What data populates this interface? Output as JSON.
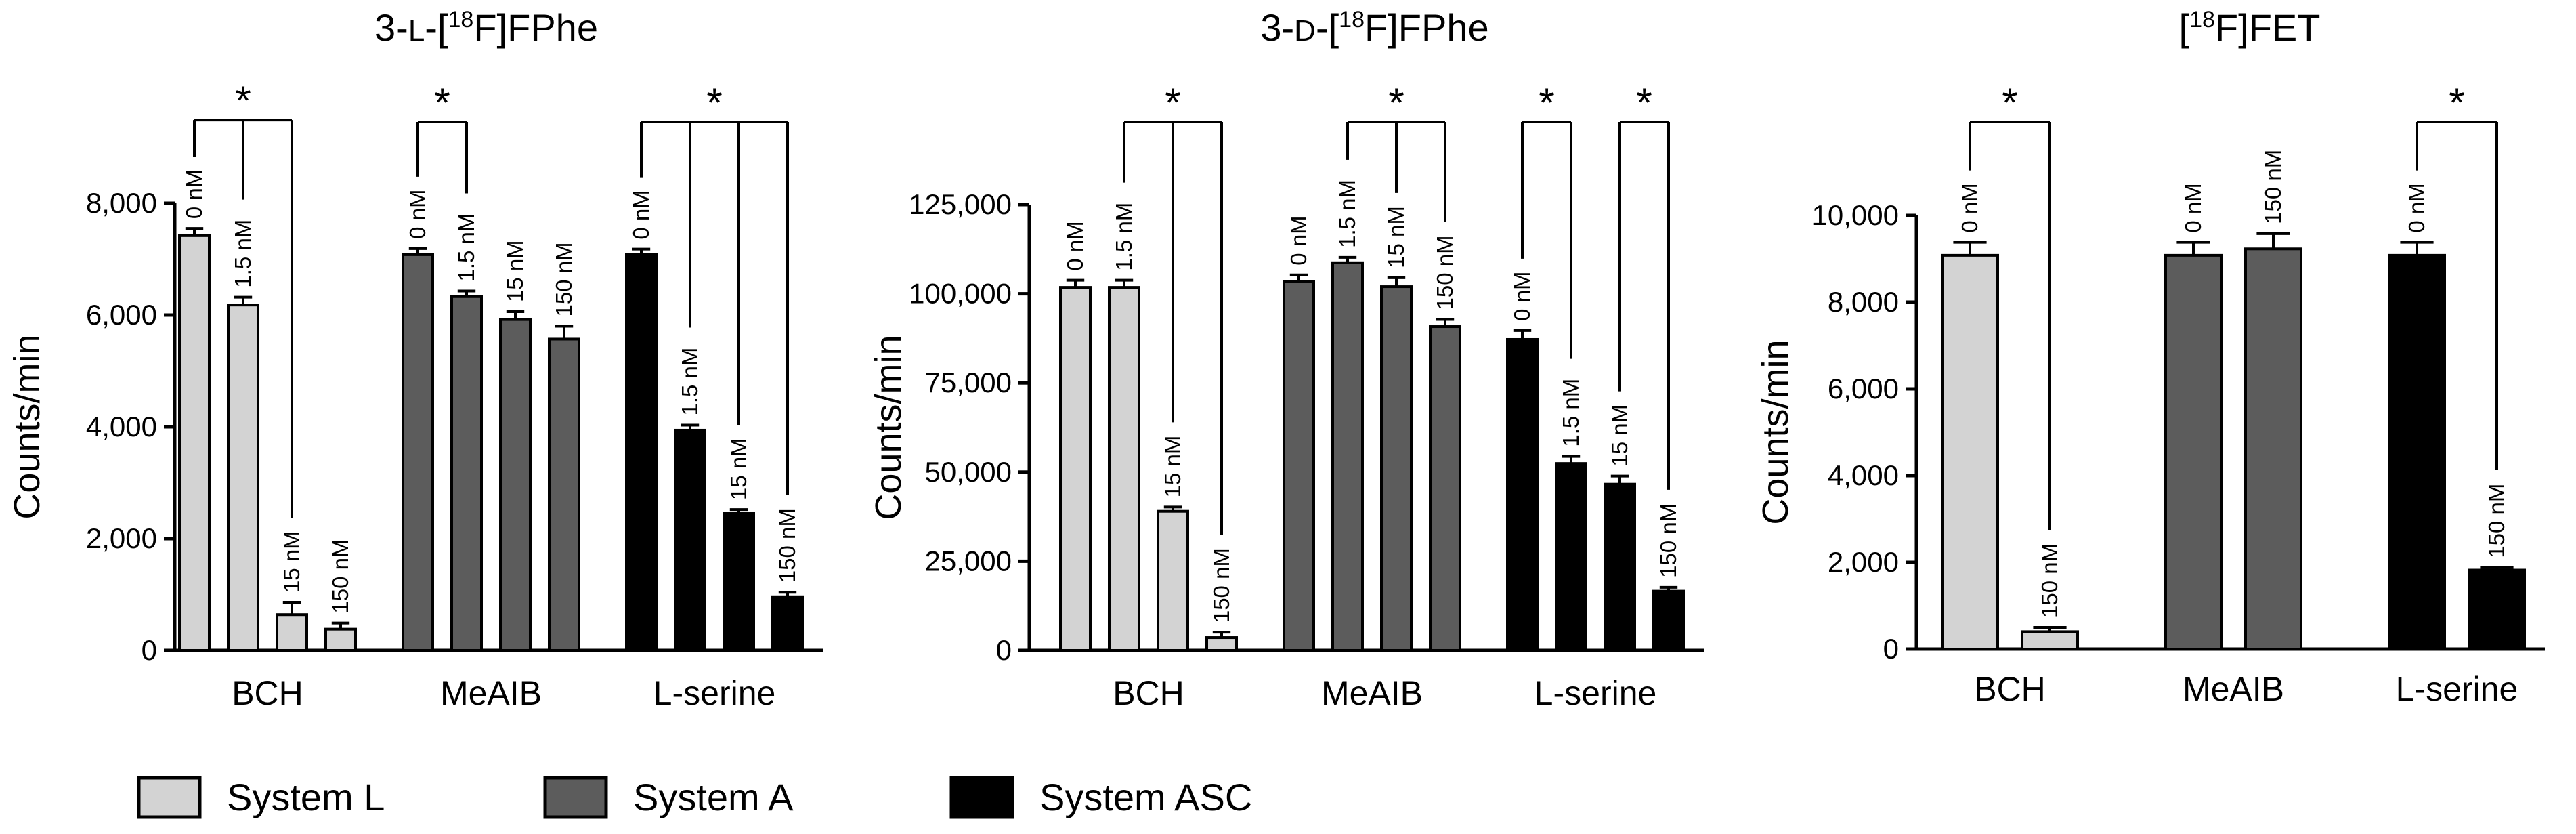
{
  "legend": [
    {
      "label": "System L",
      "color": "#d3d3d3"
    },
    {
      "label": "System A",
      "color": "#5c5c5c"
    },
    {
      "label": "System ASC",
      "color": "#000000"
    }
  ],
  "colors": {
    "System L": "#d3d3d3",
    "System A": "#5c5c5c",
    "System ASC": "#000000"
  },
  "chart_data": [
    {
      "type": "bar",
      "title": "3-L-[18F]FPhe",
      "title_parts": {
        "pre": "3-",
        "small": "L",
        "mid": "-[",
        "sup": "18",
        "post": "F]FPhe"
      },
      "ylabel": "Counts/min",
      "ylim": [
        0,
        8000
      ],
      "yticks": [
        0,
        2000,
        4000,
        6000,
        8000
      ],
      "ytick_labels": [
        "0",
        "2,000",
        "4,000",
        "6,000",
        "8,000"
      ],
      "groups": [
        {
          "category": "BCH",
          "system": "System L",
          "doses": [
            "0 nM",
            "1.5 nM",
            "15 nM",
            "150 nM"
          ],
          "values": [
            7420,
            6180,
            640,
            380
          ],
          "errors": [
            130,
            140,
            220,
            110
          ]
        },
        {
          "category": "MeAIB",
          "system": "System A",
          "doses": [
            "0 nM",
            "1.5 nM",
            "15 nM",
            "150 nM"
          ],
          "values": [
            7080,
            6330,
            5920,
            5570
          ],
          "errors": [
            110,
            100,
            140,
            230
          ]
        },
        {
          "category": "L-serine",
          "system": "System ASC",
          "doses": [
            "0 nM",
            "1.5 nM",
            "15 nM",
            "150 nM"
          ],
          "values": [
            7080,
            3940,
            2460,
            960
          ],
          "errors": [
            100,
            90,
            60,
            80
          ]
        }
      ],
      "significance": [
        {
          "label": "*",
          "group": 0,
          "from": 0,
          "to": [
            1,
            2
          ]
        },
        {
          "label": "*",
          "group": 1,
          "from": 0,
          "to": [
            1
          ]
        },
        {
          "label": "*",
          "group": 2,
          "from": 0,
          "to": [
            1,
            2,
            3
          ]
        }
      ]
    },
    {
      "type": "bar",
      "title": "3-D-[18F]FPhe",
      "title_parts": {
        "pre": "3-",
        "small": "D",
        "mid": "-[",
        "sup": "18",
        "post": "F]FPhe"
      },
      "ylabel": "Counts/min",
      "ylim": [
        0,
        125000
      ],
      "yticks": [
        0,
        25000,
        50000,
        75000,
        100000,
        125000
      ],
      "ytick_labels": [
        "0",
        "25,000",
        "50,000",
        "75,000",
        "100,000",
        "125,000"
      ],
      "groups": [
        {
          "category": "BCH",
          "system": "System L",
          "doses": [
            "0 nM",
            "1.5 nM",
            "15 nM",
            "150 nM"
          ],
          "values": [
            101800,
            101800,
            39000,
            3600
          ],
          "errors": [
            2000,
            2000,
            1200,
            1500
          ]
        },
        {
          "category": "MeAIB",
          "system": "System A",
          "doses": [
            "0 nM",
            "1.5 nM",
            "15 nM",
            "150 nM"
          ],
          "values": [
            103500,
            108700,
            102000,
            90800
          ],
          "errors": [
            1800,
            1500,
            2500,
            2000
          ]
        },
        {
          "category": "L-serine",
          "system": "System ASC",
          "doses": [
            "0 nM",
            "1.5 nM",
            "15 nM",
            "150 nM"
          ],
          "values": [
            87200,
            52400,
            46600,
            16600
          ],
          "errors": [
            2500,
            2000,
            2300,
            1100
          ]
        }
      ],
      "significance": [
        {
          "label": "*",
          "group": 0,
          "from": 1,
          "to": [
            2,
            3
          ]
        },
        {
          "label": "*",
          "group": 1,
          "from": 1,
          "to": [
            2,
            3
          ]
        },
        {
          "label": "*",
          "group": 2,
          "from": 0,
          "to": [
            1
          ]
        },
        {
          "label": "*",
          "group": 2,
          "from": 2,
          "to": [
            3
          ]
        }
      ]
    },
    {
      "type": "bar",
      "title": "[18F]FET",
      "title_parts": {
        "pre": "",
        "small": "",
        "mid": "[",
        "sup": "18",
        "post": "F]FET"
      },
      "ylabel": "Counts/min",
      "ylim": [
        0,
        10000
      ],
      "yticks": [
        0,
        2000,
        4000,
        6000,
        8000,
        10000
      ],
      "ytick_labels": [
        "0",
        "2,000",
        "4,000",
        "6,000",
        "8,000",
        "10,000"
      ],
      "groups": [
        {
          "category": "BCH",
          "system": "System L",
          "doses": [
            "0 nM",
            "150 nM"
          ],
          "values": [
            9080,
            400
          ],
          "errors": [
            300,
            100
          ]
        },
        {
          "category": "MeAIB",
          "system": "System A",
          "doses": [
            "0 nM",
            "150 nM"
          ],
          "values": [
            9080,
            9230
          ],
          "errors": [
            300,
            350
          ]
        },
        {
          "category": "L-serine",
          "system": "System ASC",
          "doses": [
            "0 nM",
            "150 nM"
          ],
          "values": [
            9080,
            1820
          ],
          "errors": [
            300,
            60
          ]
        }
      ],
      "significance": [
        {
          "label": "*",
          "group": 0,
          "from": 0,
          "to": [
            1
          ]
        },
        {
          "label": "*",
          "group": 2,
          "from": 0,
          "to": [
            1
          ]
        }
      ]
    }
  ]
}
